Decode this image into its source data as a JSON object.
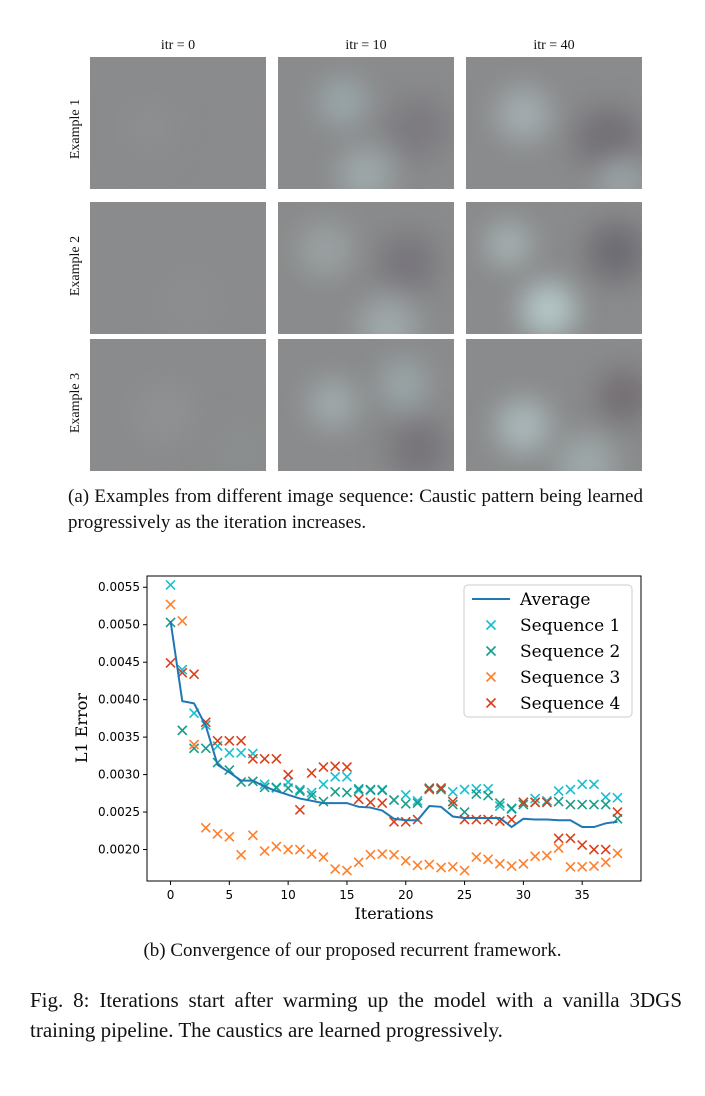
{
  "grid": {
    "columns": [
      "itr = 0",
      "itr = 10",
      "itr = 40"
    ],
    "rows": [
      "Example 1",
      "Example 2",
      "Example 3"
    ]
  },
  "caption_a": "(a) Examples from different image sequence: Caustic pattern being learned progressively as the iteration increases.",
  "caption_b": "(b) Convergence of our proposed recurrent framework.",
  "figure_caption": "Fig. 8: Iterations start after warming up the model with a vanilla 3DGS training pipeline. The caustics are learned progressively.",
  "chart_data": {
    "type": "line",
    "xlabel": "Iterations",
    "ylabel": "L1 Error",
    "xlim": [
      -2,
      40
    ],
    "ylim": [
      0.00158,
      0.00565
    ],
    "xticks": [
      0,
      5,
      10,
      15,
      20,
      25,
      30,
      35
    ],
    "yticks": [
      0.002,
      0.0025,
      0.003,
      0.0035,
      0.004,
      0.0045,
      0.005,
      0.0055
    ],
    "ytick_labels": [
      "0.0020",
      "0.0025",
      "0.0030",
      "0.0035",
      "0.0040",
      "0.0045",
      "0.0050",
      "0.0055"
    ],
    "grid": false,
    "legend_position": "top-right",
    "x": [
      0,
      1,
      2,
      3,
      4,
      5,
      6,
      7,
      8,
      9,
      10,
      11,
      12,
      13,
      14,
      15,
      16,
      17,
      18,
      19,
      20,
      21,
      22,
      23,
      24,
      25,
      26,
      27,
      28,
      29,
      30,
      31,
      32,
      33,
      34,
      35,
      36,
      37,
      38
    ],
    "series": [
      {
        "name": "Average",
        "style": "line",
        "color": "#1f77b4",
        "values": [
          0.00505,
          0.00398,
          0.00395,
          0.00365,
          0.00313,
          0.00303,
          0.00292,
          0.00292,
          0.00284,
          0.00278,
          0.00273,
          0.00268,
          0.00265,
          0.00262,
          0.00262,
          0.00262,
          0.00257,
          0.00256,
          0.00252,
          0.00241,
          0.00239,
          0.00239,
          0.00258,
          0.00257,
          0.00244,
          0.00242,
          0.00242,
          0.00242,
          0.00242,
          0.0023,
          0.00241,
          0.0024,
          0.0024,
          0.00239,
          0.00239,
          0.0023,
          0.0023,
          0.00235,
          0.00237
        ]
      },
      {
        "name": "Sequence 1",
        "style": "x",
        "color": "#17becf",
        "values": [
          0.00553,
          0.0044,
          0.00382,
          0.00366,
          0.00338,
          0.00329,
          0.00329,
          0.00328,
          0.00287,
          0.00282,
          0.0029,
          0.0028,
          0.00276,
          0.00287,
          0.00297,
          0.00297,
          0.00279,
          0.00279,
          0.0028,
          0.00266,
          0.00273,
          0.00265,
          0.0028,
          0.00282,
          0.00277,
          0.0028,
          0.00281,
          0.00281,
          0.00258,
          0.00254,
          0.00263,
          0.00268,
          0.00265,
          0.00278,
          0.0028,
          0.00287,
          0.00287,
          0.0027,
          0.00269
        ]
      },
      {
        "name": "Sequence 2",
        "style": "x",
        "color": "#1a9c8a",
        "values": [
          0.00503,
          0.00359,
          0.00335,
          0.00335,
          0.00316,
          0.00306,
          0.0029,
          0.00291,
          0.00283,
          0.00283,
          0.00282,
          0.00278,
          0.00272,
          0.00264,
          0.00277,
          0.00276,
          0.00281,
          0.0028,
          0.00279,
          0.00266,
          0.00261,
          0.00262,
          0.00282,
          0.0028,
          0.0026,
          0.0025,
          0.00274,
          0.00272,
          0.00262,
          0.00255,
          0.0026,
          0.00263,
          0.00263,
          0.00264,
          0.0026,
          0.0026,
          0.0026,
          0.0026,
          0.00241
        ]
      },
      {
        "name": "Sequence 3",
        "style": "x",
        "color": "#ff7f2a",
        "values": [
          0.00527,
          0.00505,
          0.0034,
          0.00229,
          0.00221,
          0.00217,
          0.00193,
          0.00219,
          0.00198,
          0.00204,
          0.002,
          0.002,
          0.00194,
          0.0019,
          0.00174,
          0.00172,
          0.00183,
          0.00193,
          0.00194,
          0.00193,
          0.00185,
          0.00179,
          0.0018,
          0.00176,
          0.00177,
          0.00172,
          0.0019,
          0.00187,
          0.00181,
          0.00178,
          0.00181,
          0.00191,
          0.00192,
          0.00202,
          0.00177,
          0.00177,
          0.00178,
          0.00183,
          0.00195
        ]
      },
      {
        "name": "Sequence 4",
        "style": "x",
        "color": "#d9401a",
        "values": [
          0.00449,
          0.00436,
          0.00434,
          0.0037,
          0.00345,
          0.00345,
          0.00345,
          0.00321,
          0.00321,
          0.00321,
          0.003,
          0.00253,
          0.00302,
          0.0031,
          0.00311,
          0.0031,
          0.00267,
          0.00263,
          0.00262,
          0.00237,
          0.00237,
          0.0024,
          0.00281,
          0.00282,
          0.00264,
          0.0024,
          0.0024,
          0.0024,
          0.00238,
          0.0024,
          0.00263,
          0.00263,
          0.00263,
          0.00215,
          0.00215,
          0.00206,
          0.002,
          0.002,
          0.0025
        ]
      }
    ]
  }
}
